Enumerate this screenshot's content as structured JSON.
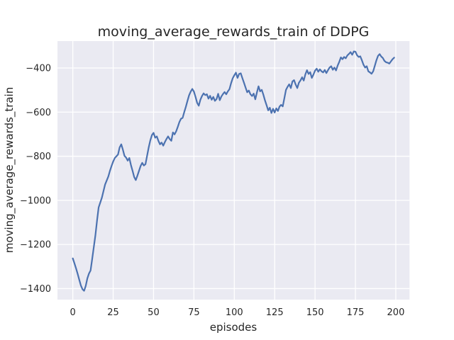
{
  "chart_data": {
    "type": "line",
    "title": "moving_average_rewards_train of DDPG",
    "xlabel": "episodes",
    "ylabel": "moving_average_rewards_train",
    "grid": true,
    "legend": null,
    "style": "seaborn-darkgrid",
    "xlim": [
      -9.5,
      208.5
    ],
    "ylim": [
      -1450,
      -278
    ],
    "x_ticks": {
      "values": [
        0,
        25,
        50,
        75,
        100,
        125,
        150,
        175,
        200
      ],
      "labels": [
        "0",
        "25",
        "50",
        "75",
        "100",
        "125",
        "150",
        "175",
        "200"
      ]
    },
    "y_ticks": {
      "values": [
        -400,
        -600,
        -800,
        -1000,
        -1200,
        -1400
      ],
      "labels": [
        "−400",
        "−600",
        "−800",
        "−1000",
        "−1200",
        "−1400"
      ]
    },
    "colors": {
      "line": "#4c72b0",
      "plot_background": "#eaeaf2",
      "grid": "#ffffff",
      "text": "#262626",
      "figure_background": "#ffffff"
    },
    "series": [
      {
        "name": "moving_average_rewards_train",
        "x_start": 0,
        "x_step": 1,
        "values": [
          -1263,
          -1285,
          -1308,
          -1333,
          -1360,
          -1386,
          -1403,
          -1410,
          -1388,
          -1354,
          -1332,
          -1318,
          -1266,
          -1212,
          -1158,
          -1092,
          -1032,
          -1010,
          -988,
          -958,
          -928,
          -910,
          -892,
          -866,
          -844,
          -824,
          -808,
          -800,
          -792,
          -760,
          -746,
          -770,
          -798,
          -806,
          -820,
          -808,
          -840,
          -866,
          -894,
          -908,
          -888,
          -866,
          -844,
          -830,
          -842,
          -836,
          -798,
          -760,
          -728,
          -704,
          -694,
          -716,
          -710,
          -730,
          -746,
          -738,
          -752,
          -736,
          -722,
          -710,
          -722,
          -730,
          -692,
          -701,
          -687,
          -667,
          -645,
          -630,
          -626,
          -600,
          -576,
          -549,
          -524,
          -507,
          -495,
          -507,
          -531,
          -558,
          -571,
          -544,
          -527,
          -515,
          -523,
          -519,
          -539,
          -526,
          -544,
          -531,
          -549,
          -541,
          -517,
          -546,
          -529,
          -518,
          -509,
          -519,
          -506,
          -496,
          -469,
          -447,
          -433,
          -421,
          -445,
          -427,
          -424,
          -446,
          -467,
          -489,
          -510,
          -502,
          -519,
          -527,
          -516,
          -542,
          -511,
          -483,
          -506,
          -499,
          -521,
          -547,
          -569,
          -592,
          -580,
          -604,
          -585,
          -602,
          -583,
          -595,
          -575,
          -567,
          -574,
          -537,
          -499,
          -485,
          -474,
          -491,
          -461,
          -455,
          -475,
          -491,
          -467,
          -456,
          -442,
          -457,
          -429,
          -410,
          -427,
          -419,
          -445,
          -430,
          -412,
          -403,
          -417,
          -406,
          -415,
          -420,
          -409,
          -423,
          -410,
          -398,
          -392,
          -408,
          -398,
          -411,
          -389,
          -372,
          -352,
          -360,
          -350,
          -356,
          -343,
          -336,
          -328,
          -340,
          -325,
          -326,
          -342,
          -350,
          -347,
          -365,
          -385,
          -398,
          -392,
          -415,
          -420,
          -426,
          -415,
          -390,
          -365,
          -345,
          -337,
          -348,
          -355,
          -368,
          -374,
          -376,
          -380,
          -370,
          -360,
          -353
        ]
      }
    ]
  }
}
